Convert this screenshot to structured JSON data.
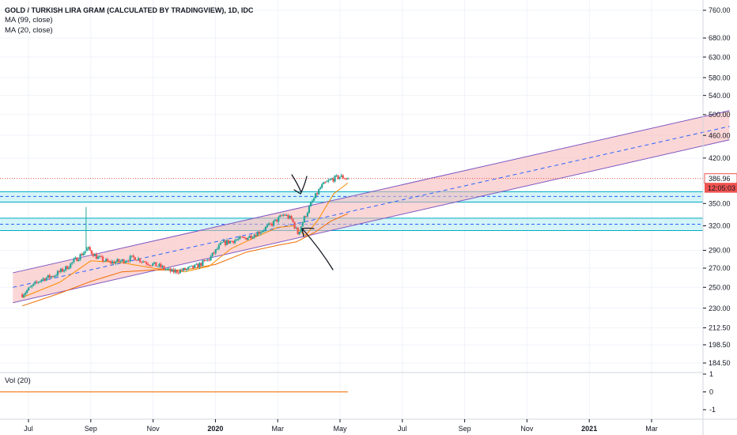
{
  "header": {
    "title": "GOLD / TURKISH LIRA GRAM (CALCULATED BY TRADINGVIEW), 1D, IDC",
    "ma99_label": "MA (99, close)",
    "ma20_label": "MA (20, close)"
  },
  "volume_pane": {
    "label": "Vol (20)",
    "ticks": [
      "1",
      "0",
      "-1"
    ]
  },
  "price_badge": {
    "price": "386.96",
    "countdown": "12:05:03",
    "color": "#ef5350"
  },
  "colors": {
    "up_candle": "#26a69a",
    "down_candle": "#ef5350",
    "ma99": "#ef6c00",
    "ma20": "#fb8c00",
    "channel_fill": "#f8b4b4",
    "channel_line": "#7e57c2",
    "zone_fill": "#b2ebf2",
    "zone_line": "#00acc1",
    "price_line": "#ef5350"
  },
  "chart_data": {
    "type": "candlestick",
    "title": "GOLD / TURKISH LIRA GRAM (CALCULATED BY TRADINGVIEW), 1D, IDC",
    "scale": "log",
    "ylim": [
      180,
      790
    ],
    "y_ticks": [
      "760.00",
      "680.00",
      "630.00",
      "580.00",
      "540.00",
      "500.00",
      "460.00",
      "420.00",
      "386.96",
      "350.00",
      "320.00",
      "290.00",
      "270.00",
      "250.00",
      "230.00",
      "212.50",
      "198.50",
      "184.50"
    ],
    "x_ticks": [
      {
        "label": "Jul",
        "m": 0
      },
      {
        "label": "Sep",
        "m": 2
      },
      {
        "label": "Nov",
        "m": 4
      },
      {
        "label": "2020",
        "m": 6
      },
      {
        "label": "Mar",
        "m": 8
      },
      {
        "label": "May",
        "m": 10
      },
      {
        "label": "Jul",
        "m": 12
      },
      {
        "label": "Sep",
        "m": 14
      },
      {
        "label": "Nov",
        "m": 16
      },
      {
        "label": "2021",
        "m": 18
      },
      {
        "label": "Mar",
        "m": 20
      }
    ],
    "price_path": [
      [
        -0.2,
        243
      ],
      [
        0.4,
        258
      ],
      [
        0.8,
        262
      ],
      [
        1.2,
        270
      ],
      [
        1.6,
        282
      ],
      [
        1.9,
        292
      ],
      [
        2.2,
        282
      ],
      [
        2.6,
        276
      ],
      [
        3.0,
        278
      ],
      [
        3.4,
        282
      ],
      [
        3.8,
        276
      ],
      [
        4.2,
        272
      ],
      [
        4.6,
        266
      ],
      [
        5.0,
        268
      ],
      [
        5.4,
        272
      ],
      [
        5.8,
        280
      ],
      [
        6.2,
        298
      ],
      [
        6.6,
        302
      ],
      [
        7.0,
        305
      ],
      [
        7.4,
        312
      ],
      [
        7.8,
        322
      ],
      [
        8.2,
        335
      ],
      [
        8.45,
        328
      ],
      [
        8.65,
        310
      ],
      [
        8.85,
        330
      ],
      [
        9.1,
        352
      ],
      [
        9.4,
        375
      ],
      [
        9.7,
        385
      ],
      [
        10.0,
        390
      ],
      [
        10.25,
        387
      ]
    ],
    "ma99": [
      [
        -0.2,
        232
      ],
      [
        1.0,
        244
      ],
      [
        2.0,
        256
      ],
      [
        3.0,
        266
      ],
      [
        4.0,
        268
      ],
      [
        5.0,
        268
      ],
      [
        6.0,
        274
      ],
      [
        7.0,
        288
      ],
      [
        8.0,
        296
      ],
      [
        8.6,
        300
      ],
      [
        9.2,
        312
      ],
      [
        9.7,
        326
      ],
      [
        10.25,
        336
      ]
    ],
    "ma20": [
      [
        -0.2,
        240
      ],
      [
        1.0,
        255
      ],
      [
        2.0,
        278
      ],
      [
        3.0,
        276
      ],
      [
        4.0,
        270
      ],
      [
        5.0,
        266
      ],
      [
        5.8,
        272
      ],
      [
        6.5,
        292
      ],
      [
        7.3,
        306
      ],
      [
        8.0,
        318
      ],
      [
        8.5,
        320
      ],
      [
        8.9,
        308
      ],
      [
        9.3,
        328
      ],
      [
        9.8,
        364
      ],
      [
        10.25,
        380
      ]
    ],
    "spike": {
      "m": 1.85,
      "high": 345
    },
    "channel": {
      "upper": [
        [
          -0.5,
          265
        ],
        [
          22.5,
          508
        ]
      ],
      "middle": [
        [
          -0.5,
          250
        ],
        [
          22.5,
          477
        ]
      ],
      "lower": [
        [
          -0.5,
          235
        ],
        [
          22.5,
          452
        ]
      ]
    },
    "zones": [
      {
        "top": 367,
        "mid": 360,
        "bottom": 352
      },
      {
        "top": 330,
        "mid": 322,
        "bottom": 314
      }
    ],
    "last_price": 386.96,
    "volume": {
      "value": 0,
      "ylim": [
        -1,
        1
      ]
    }
  }
}
